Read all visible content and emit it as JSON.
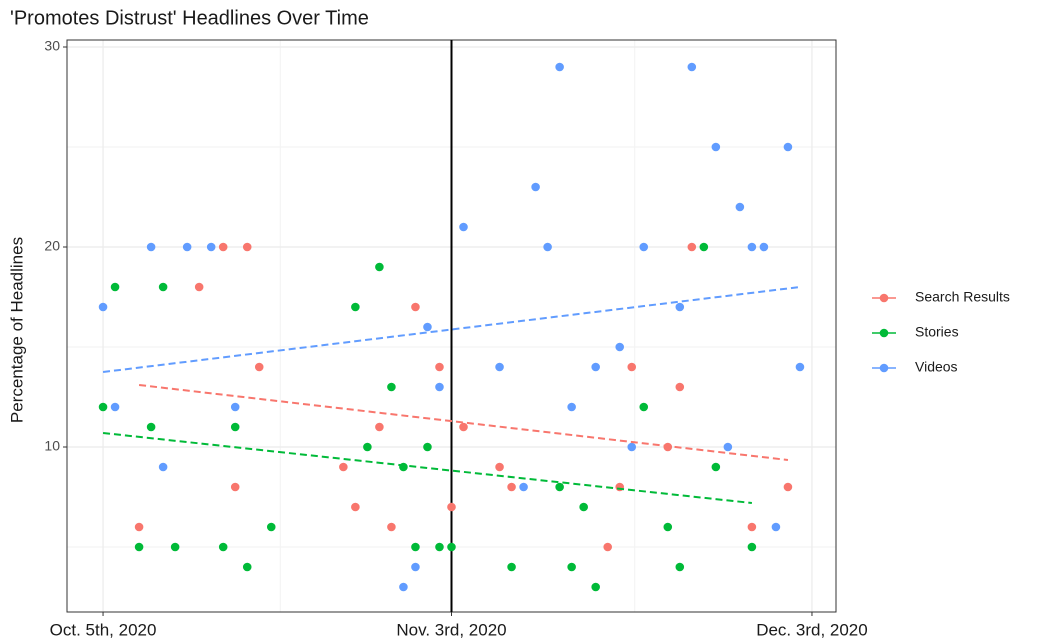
{
  "chart_data": {
    "type": "scatter",
    "title": "'Promotes Distrust' Headlines Over Time",
    "ylabel": "Percentage of Headlines",
    "xlim": [
      "2020-10-02",
      "2020-12-05"
    ],
    "xticks": [
      {
        "value": "2020-10-05",
        "label": "Oct. 5th, 2020"
      },
      {
        "value": "2020-11-03",
        "label": "Nov. 3rd, 2020"
      },
      {
        "value": "2020-12-03",
        "label": "Dec. 3rd, 2020"
      }
    ],
    "ylim": [
      1.75,
      30.35
    ],
    "yticks": [
      10,
      20,
      30
    ],
    "grid": true,
    "legend": "right",
    "vline": "2020-11-03",
    "series": [
      {
        "name": "Search Results",
        "color": "#F8766D",
        "x": [
          "2020-10-08",
          "2020-10-13",
          "2020-10-15",
          "2020-10-16",
          "2020-10-17",
          "2020-10-18",
          "2020-10-25",
          "2020-10-26",
          "2020-10-28",
          "2020-10-29",
          "2020-10-31",
          "2020-11-02",
          "2020-11-03",
          "2020-11-04",
          "2020-11-07",
          "2020-11-08",
          "2020-11-16",
          "2020-11-17",
          "2020-11-18",
          "2020-11-21",
          "2020-11-22",
          "2020-11-23",
          "2020-11-28",
          "2020-12-01"
        ],
        "values": [
          6,
          18,
          20,
          8,
          20,
          14,
          9,
          7,
          11,
          6,
          17,
          14,
          7,
          11,
          9,
          8,
          5,
          8,
          14,
          10,
          13,
          20,
          6,
          8
        ],
        "trend": {
          "x": [
            "2020-10-08",
            "2020-12-01"
          ],
          "values": [
            13.1,
            9.35
          ]
        }
      },
      {
        "name": "Stories",
        "color": "#00BA38",
        "x": [
          "2020-10-05",
          "2020-10-06",
          "2020-10-08",
          "2020-10-09",
          "2020-10-10",
          "2020-10-11",
          "2020-10-15",
          "2020-10-16",
          "2020-10-17",
          "2020-10-19",
          "2020-10-26",
          "2020-10-27",
          "2020-10-28",
          "2020-10-29",
          "2020-10-30",
          "2020-10-31",
          "2020-11-01",
          "2020-11-02",
          "2020-11-03",
          "2020-11-08",
          "2020-11-12",
          "2020-11-13",
          "2020-11-14",
          "2020-11-15",
          "2020-11-19",
          "2020-11-21",
          "2020-11-22",
          "2020-11-24",
          "2020-11-25",
          "2020-11-28"
        ],
        "values": [
          12,
          18,
          5,
          11,
          18,
          5,
          5,
          11,
          4,
          6,
          17,
          10,
          19,
          13,
          9,
          5,
          10,
          5,
          5,
          4,
          8,
          4,
          7,
          3,
          12,
          6,
          4,
          20,
          9,
          5
        ],
        "trend": {
          "x": [
            "2020-10-05",
            "2020-11-28"
          ],
          "values": [
            10.7,
            7.2
          ]
        }
      },
      {
        "name": "Videos",
        "color": "#619CFF",
        "x": [
          "2020-10-05",
          "2020-10-06",
          "2020-10-09",
          "2020-10-10",
          "2020-10-12",
          "2020-10-14",
          "2020-10-16",
          "2020-10-30",
          "2020-10-31",
          "2020-11-01",
          "2020-11-02",
          "2020-11-04",
          "2020-11-07",
          "2020-11-09",
          "2020-11-10",
          "2020-11-11",
          "2020-11-12",
          "2020-11-13",
          "2020-11-15",
          "2020-11-17",
          "2020-11-18",
          "2020-11-19",
          "2020-11-22",
          "2020-11-23",
          "2020-11-25",
          "2020-11-26",
          "2020-11-27",
          "2020-11-28",
          "2020-11-29",
          "2020-11-30",
          "2020-12-01",
          "2020-12-02"
        ],
        "values": [
          17,
          12,
          20,
          9,
          20,
          20,
          12,
          3,
          4,
          16,
          13,
          21,
          14,
          8,
          23,
          20,
          29,
          12,
          14,
          15,
          10,
          20,
          17,
          29,
          25,
          10,
          22,
          20,
          20,
          6,
          25,
          14
        ],
        "trend": {
          "x": [
            "2020-10-05",
            "2020-12-02"
          ],
          "values": [
            13.75,
            18
          ]
        }
      }
    ]
  }
}
